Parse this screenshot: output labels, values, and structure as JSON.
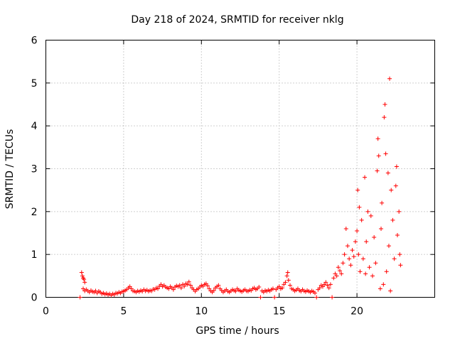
{
  "chart_data": {
    "type": "scatter",
    "title": "Day 218 of 2024, SRMTID for receiver nklg",
    "xlabel": "GPS time / hours",
    "ylabel": "SRMTID / TECUs",
    "xlim": [
      0,
      25
    ],
    "ylim": [
      0,
      6
    ],
    "xticks": [
      0,
      5,
      10,
      15,
      20
    ],
    "yticks": [
      0,
      1,
      2,
      3,
      4,
      5,
      6
    ],
    "xtick_labels": [
      "0",
      "5",
      "10",
      "15",
      "20"
    ],
    "ytick_labels": [
      "0",
      "1",
      "2",
      "3",
      "4",
      "5",
      "6"
    ],
    "grid": true,
    "marker": "+",
    "color": "#ff0000",
    "series": [
      {
        "name": "SRMTID",
        "points": [
          [
            2.2,
            0.0
          ],
          [
            2.3,
            0.58
          ],
          [
            2.35,
            0.5
          ],
          [
            2.4,
            0.45
          ],
          [
            2.45,
            0.42
          ],
          [
            2.5,
            0.35
          ],
          [
            2.4,
            0.2
          ],
          [
            2.5,
            0.15
          ],
          [
            2.6,
            0.18
          ],
          [
            2.7,
            0.15
          ],
          [
            2.8,
            0.12
          ],
          [
            2.9,
            0.16
          ],
          [
            3.0,
            0.13
          ],
          [
            3.1,
            0.12
          ],
          [
            3.2,
            0.15
          ],
          [
            3.3,
            0.1
          ],
          [
            3.4,
            0.14
          ],
          [
            3.5,
            0.12
          ],
          [
            3.6,
            0.08
          ],
          [
            3.7,
            0.1
          ],
          [
            3.8,
            0.07
          ],
          [
            3.9,
            0.09
          ],
          [
            4.0,
            0.06
          ],
          [
            4.1,
            0.08
          ],
          [
            4.2,
            0.05
          ],
          [
            4.3,
            0.08
          ],
          [
            4.4,
            0.06
          ],
          [
            4.5,
            0.1
          ],
          [
            4.6,
            0.09
          ],
          [
            4.7,
            0.12
          ],
          [
            4.8,
            0.1
          ],
          [
            4.9,
            0.13
          ],
          [
            5.0,
            0.14
          ],
          [
            5.1,
            0.16
          ],
          [
            5.2,
            0.18
          ],
          [
            5.3,
            0.22
          ],
          [
            5.4,
            0.25
          ],
          [
            5.5,
            0.2
          ],
          [
            5.6,
            0.15
          ],
          [
            5.7,
            0.14
          ],
          [
            5.8,
            0.12
          ],
          [
            5.9,
            0.15
          ],
          [
            6.0,
            0.13
          ],
          [
            6.1,
            0.16
          ],
          [
            6.2,
            0.14
          ],
          [
            6.3,
            0.18
          ],
          [
            6.4,
            0.15
          ],
          [
            6.5,
            0.17
          ],
          [
            6.6,
            0.14
          ],
          [
            6.7,
            0.16
          ],
          [
            6.8,
            0.15
          ],
          [
            6.9,
            0.19
          ],
          [
            7.0,
            0.18
          ],
          [
            7.1,
            0.22
          ],
          [
            7.2,
            0.2
          ],
          [
            7.3,
            0.26
          ],
          [
            7.4,
            0.3
          ],
          [
            7.5,
            0.25
          ],
          [
            7.6,
            0.28
          ],
          [
            7.7,
            0.24
          ],
          [
            7.8,
            0.22
          ],
          [
            7.9,
            0.2
          ],
          [
            8.0,
            0.25
          ],
          [
            8.1,
            0.22
          ],
          [
            8.2,
            0.18
          ],
          [
            8.3,
            0.24
          ],
          [
            8.4,
            0.27
          ],
          [
            8.5,
            0.25
          ],
          [
            8.6,
            0.28
          ],
          [
            8.7,
            0.22
          ],
          [
            8.8,
            0.3
          ],
          [
            8.9,
            0.26
          ],
          [
            9.0,
            0.32
          ],
          [
            9.1,
            0.3
          ],
          [
            9.2,
            0.36
          ],
          [
            9.3,
            0.28
          ],
          [
            9.4,
            0.22
          ],
          [
            9.5,
            0.18
          ],
          [
            9.6,
            0.14
          ],
          [
            9.7,
            0.18
          ],
          [
            9.8,
            0.2
          ],
          [
            9.9,
            0.24
          ],
          [
            10.0,
            0.28
          ],
          [
            10.1,
            0.26
          ],
          [
            10.2,
            0.3
          ],
          [
            10.3,
            0.32
          ],
          [
            10.4,
            0.27
          ],
          [
            10.5,
            0.2
          ],
          [
            10.6,
            0.15
          ],
          [
            10.7,
            0.12
          ],
          [
            10.8,
            0.16
          ],
          [
            10.9,
            0.22
          ],
          [
            11.0,
            0.25
          ],
          [
            11.1,
            0.28
          ],
          [
            11.2,
            0.2
          ],
          [
            11.3,
            0.16
          ],
          [
            11.4,
            0.12
          ],
          [
            11.5,
            0.15
          ],
          [
            11.6,
            0.18
          ],
          [
            11.7,
            0.14
          ],
          [
            11.8,
            0.12
          ],
          [
            11.9,
            0.15
          ],
          [
            12.0,
            0.18
          ],
          [
            12.1,
            0.16
          ],
          [
            12.2,
            0.14
          ],
          [
            12.3,
            0.2
          ],
          [
            12.4,
            0.17
          ],
          [
            12.5,
            0.15
          ],
          [
            12.6,
            0.13
          ],
          [
            12.7,
            0.16
          ],
          [
            12.8,
            0.18
          ],
          [
            12.9,
            0.15
          ],
          [
            13.0,
            0.14
          ],
          [
            13.1,
            0.17
          ],
          [
            13.2,
            0.16
          ],
          [
            13.3,
            0.2
          ],
          [
            13.4,
            0.22
          ],
          [
            13.5,
            0.18
          ],
          [
            13.6,
            0.2
          ],
          [
            13.7,
            0.24
          ],
          [
            13.8,
            0.0
          ],
          [
            13.9,
            0.15
          ],
          [
            14.0,
            0.12
          ],
          [
            14.1,
            0.16
          ],
          [
            14.2,
            0.14
          ],
          [
            14.3,
            0.17
          ],
          [
            14.4,
            0.15
          ],
          [
            14.5,
            0.18
          ],
          [
            14.6,
            0.2
          ],
          [
            14.7,
            0.0
          ],
          [
            14.8,
            0.18
          ],
          [
            14.9,
            0.22
          ],
          [
            15.0,
            0.25
          ],
          [
            15.1,
            0.2
          ],
          [
            15.2,
            0.22
          ],
          [
            15.3,
            0.3
          ],
          [
            15.4,
            0.35
          ],
          [
            15.5,
            0.5
          ],
          [
            15.55,
            0.58
          ],
          [
            15.6,
            0.4
          ],
          [
            15.7,
            0.28
          ],
          [
            15.8,
            0.2
          ],
          [
            15.9,
            0.18
          ],
          [
            16.0,
            0.15
          ],
          [
            16.1,
            0.17
          ],
          [
            16.2,
            0.2
          ],
          [
            16.3,
            0.16
          ],
          [
            16.4,
            0.14
          ],
          [
            16.5,
            0.18
          ],
          [
            16.6,
            0.15
          ],
          [
            16.7,
            0.13
          ],
          [
            16.8,
            0.16
          ],
          [
            16.9,
            0.14
          ],
          [
            17.0,
            0.12
          ],
          [
            17.1,
            0.15
          ],
          [
            17.2,
            0.13
          ],
          [
            17.3,
            0.1
          ],
          [
            17.4,
            0.0
          ],
          [
            17.5,
            0.18
          ],
          [
            17.6,
            0.22
          ],
          [
            17.7,
            0.28
          ],
          [
            17.8,
            0.25
          ],
          [
            17.9,
            0.3
          ],
          [
            18.0,
            0.35
          ],
          [
            18.1,
            0.28
          ],
          [
            18.2,
            0.22
          ],
          [
            18.3,
            0.3
          ],
          [
            18.4,
            0.0
          ],
          [
            18.5,
            0.45
          ],
          [
            18.6,
            0.55
          ],
          [
            18.7,
            0.5
          ],
          [
            18.8,
            0.7
          ],
          [
            18.9,
            0.62
          ],
          [
            19.0,
            0.55
          ],
          [
            19.1,
            0.8
          ],
          [
            19.2,
            1.0
          ],
          [
            19.3,
            1.6
          ],
          [
            19.4,
            1.2
          ],
          [
            19.5,
            0.9
          ],
          [
            19.6,
            0.75
          ],
          [
            19.7,
            1.1
          ],
          [
            19.8,
            0.95
          ],
          [
            19.9,
            1.3
          ],
          [
            20.0,
            1.55
          ],
          [
            20.05,
            2.5
          ],
          [
            20.1,
            1.0
          ],
          [
            20.15,
            2.1
          ],
          [
            20.2,
            0.6
          ],
          [
            20.3,
            1.8
          ],
          [
            20.4,
            0.9
          ],
          [
            20.5,
            2.8
          ],
          [
            20.55,
            0.55
          ],
          [
            20.6,
            1.3
          ],
          [
            20.7,
            2.0
          ],
          [
            20.8,
            0.7
          ],
          [
            20.9,
            1.9
          ],
          [
            21.0,
            0.5
          ],
          [
            21.1,
            1.4
          ],
          [
            21.2,
            0.8
          ],
          [
            21.3,
            2.95
          ],
          [
            21.35,
            3.7
          ],
          [
            21.4,
            3.3
          ],
          [
            21.5,
            0.2
          ],
          [
            21.55,
            1.6
          ],
          [
            21.6,
            2.2
          ],
          [
            21.7,
            0.3
          ],
          [
            21.75,
            4.2
          ],
          [
            21.8,
            4.5
          ],
          [
            21.85,
            3.35
          ],
          [
            21.9,
            0.6
          ],
          [
            22.0,
            2.9
          ],
          [
            22.05,
            1.2
          ],
          [
            22.1,
            5.1
          ],
          [
            22.15,
            0.15
          ],
          [
            22.2,
            2.5
          ],
          [
            22.3,
            1.8
          ],
          [
            22.4,
            0.9
          ],
          [
            22.5,
            2.6
          ],
          [
            22.55,
            3.05
          ],
          [
            22.6,
            1.45
          ],
          [
            22.7,
            2.0
          ],
          [
            22.75,
            1.0
          ],
          [
            22.8,
            0.75
          ]
        ]
      }
    ]
  }
}
